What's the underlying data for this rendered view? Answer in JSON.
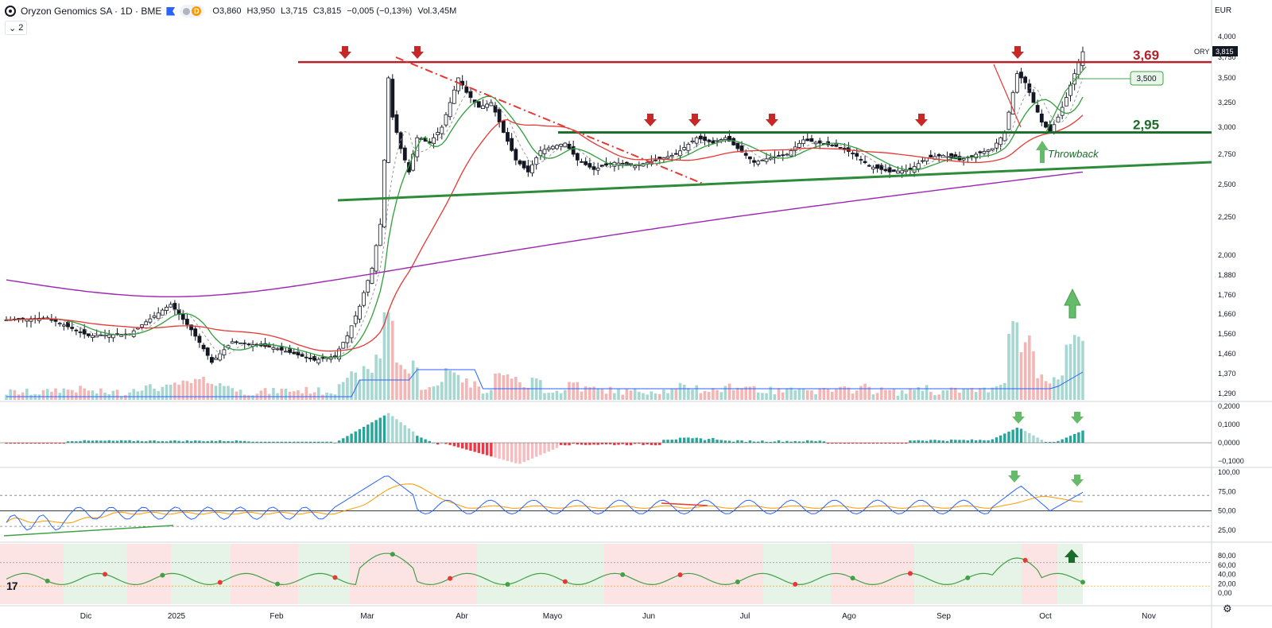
{
  "header": {
    "title": "Oryzon Genomics SA · 1D · BME",
    "delay_badge": "D",
    "open": "O3,860",
    "high": "H3,950",
    "low": "L3,715",
    "close": "C3,815",
    "change": "−0,005 (−0,13%)",
    "volume": "Vol.3,45M",
    "collapse_count": "2",
    "currency": "EUR",
    "tv_logo": "17"
  },
  "colors": {
    "up": "#26a69a",
    "down": "#ef5350",
    "resistance": "#b2222b",
    "support": "#1b6b2a",
    "trendline": "#2e8b3a",
    "ma_fast": "#2e9e3a",
    "ma_mid": "#e53935",
    "ma_slow": "#9c27b0",
    "volume_ma": "#2962ff",
    "rsi": "#2962ff",
    "rsi_ma": "#ff9800"
  },
  "chart_data": [
    {
      "type": "candlestick",
      "symbol": "ORY",
      "last_price_label": "3,815",
      "x_axis_labels": [
        "Dic",
        "2025",
        "Feb",
        "Mar",
        "Abr",
        "Mayo",
        "Jun",
        "Jul",
        "Ago",
        "Sep",
        "Oct",
        "Nov"
      ],
      "y_axis_labels": [
        "4,000",
        "3,750",
        "3,500",
        "3,250",
        "3,000",
        "2,750",
        "2,500",
        "2,250",
        "2,000",
        "1,880",
        "1,760",
        "1,660",
        "1,560",
        "1,460",
        "1,370",
        "1,290"
      ],
      "key_levels": [
        {
          "label": "3,69",
          "value": 3.69
        },
        {
          "label": "2,95",
          "value": 2.95
        }
      ],
      "target_label": "3,500",
      "annotations": [
        "Throwback"
      ],
      "price_path": [
        {
          "t": 0,
          "p": 1.63
        },
        {
          "t": 10,
          "p": 1.64
        },
        {
          "t": 20,
          "p": 1.55
        },
        {
          "t": 30,
          "p": 1.56
        },
        {
          "t": 40,
          "p": 1.71
        },
        {
          "t": 45,
          "p": 1.58
        },
        {
          "t": 50,
          "p": 1.42
        },
        {
          "t": 55,
          "p": 1.52
        },
        {
          "t": 65,
          "p": 1.49
        },
        {
          "t": 75,
          "p": 1.43
        },
        {
          "t": 80,
          "p": 1.45
        },
        {
          "t": 83,
          "p": 1.55
        },
        {
          "t": 86,
          "p": 1.7
        },
        {
          "t": 89,
          "p": 1.92
        },
        {
          "t": 91,
          "p": 2.2
        },
        {
          "t": 92,
          "p": 2.7
        },
        {
          "t": 93,
          "p": 3.5
        },
        {
          "t": 94,
          "p": 3.1
        },
        {
          "t": 96,
          "p": 2.8
        },
        {
          "t": 98,
          "p": 2.6
        },
        {
          "t": 100,
          "p": 2.9
        },
        {
          "t": 103,
          "p": 2.85
        },
        {
          "t": 106,
          "p": 3.0
        },
        {
          "t": 110,
          "p": 3.5
        },
        {
          "t": 112,
          "p": 3.35
        },
        {
          "t": 115,
          "p": 3.2
        },
        {
          "t": 118,
          "p": 3.25
        },
        {
          "t": 121,
          "p": 2.95
        },
        {
          "t": 124,
          "p": 2.7
        },
        {
          "t": 127,
          "p": 2.6
        },
        {
          "t": 130,
          "p": 2.78
        },
        {
          "t": 133,
          "p": 2.82
        },
        {
          "t": 136,
          "p": 2.85
        },
        {
          "t": 139,
          "p": 2.7
        },
        {
          "t": 143,
          "p": 2.62
        },
        {
          "t": 148,
          "p": 2.68
        },
        {
          "t": 153,
          "p": 2.65
        },
        {
          "t": 158,
          "p": 2.7
        },
        {
          "t": 163,
          "p": 2.75
        },
        {
          "t": 168,
          "p": 2.9
        },
        {
          "t": 172,
          "p": 2.85
        },
        {
          "t": 175,
          "p": 2.9
        },
        {
          "t": 178,
          "p": 2.8
        },
        {
          "t": 182,
          "p": 2.68
        },
        {
          "t": 186,
          "p": 2.72
        },
        {
          "t": 190,
          "p": 2.75
        },
        {
          "t": 194,
          "p": 2.88
        },
        {
          "t": 198,
          "p": 2.85
        },
        {
          "t": 202,
          "p": 2.82
        },
        {
          "t": 206,
          "p": 2.76
        },
        {
          "t": 210,
          "p": 2.65
        },
        {
          "t": 215,
          "p": 2.6
        },
        {
          "t": 220,
          "p": 2.62
        },
        {
          "t": 224,
          "p": 2.72
        },
        {
          "t": 228,
          "p": 2.74
        },
        {
          "t": 232,
          "p": 2.7
        },
        {
          "t": 236,
          "p": 2.75
        },
        {
          "t": 240,
          "p": 2.8
        },
        {
          "t": 243,
          "p": 2.95
        },
        {
          "t": 246,
          "p": 3.55
        },
        {
          "t": 248,
          "p": 3.45
        },
        {
          "t": 250,
          "p": 3.25
        },
        {
          "t": 252,
          "p": 3.05
        },
        {
          "t": 254,
          "p": 2.95
        },
        {
          "t": 256,
          "p": 3.1
        },
        {
          "t": 258,
          "p": 3.3
        },
        {
          "t": 260,
          "p": 3.55
        },
        {
          "t": 262,
          "p": 3.815
        }
      ]
    },
    {
      "type": "histogram",
      "y_axis_labels": [
        "0,2000",
        "0,1000",
        "0,0000",
        "−0,1000"
      ]
    },
    {
      "type": "line",
      "y_axis_labels": [
        "100,00",
        "75,00",
        "50,00",
        "25,00"
      ]
    },
    {
      "type": "area",
      "y_axis_labels": [
        "80,00",
        "60,00",
        "40,00",
        "20,00",
        "0,00"
      ]
    }
  ]
}
